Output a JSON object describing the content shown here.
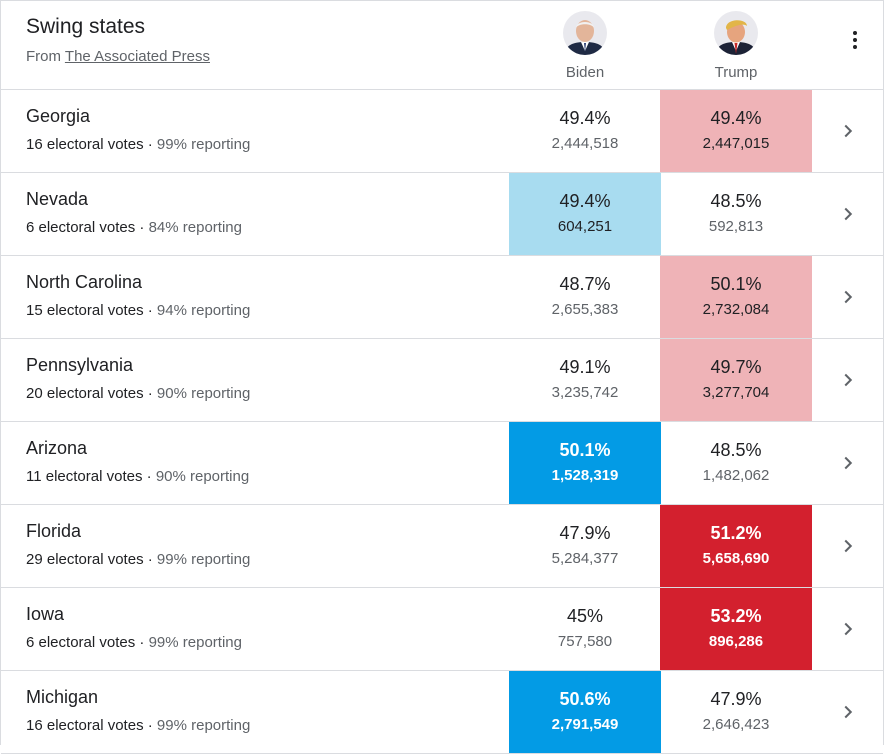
{
  "header": {
    "title": "Swing states",
    "source_prefix": "From",
    "source_link": "The Associated Press",
    "candidates": [
      {
        "name": "Biden",
        "icon": "biden-avatar-icon"
      },
      {
        "name": "Trump",
        "icon": "trump-avatar-icon"
      }
    ],
    "menu_icon": "more-vert-icon"
  },
  "colors": {
    "dem_strong": "#039be5",
    "dem_light": "#a8dcf0",
    "rep_strong": "#d3202e",
    "rep_light": "#efb3b7"
  },
  "rows": [
    {
      "state": "Georgia",
      "electoral": "16 electoral votes",
      "reporting": "99% reporting",
      "biden_pct": "49.4%",
      "biden_votes": "2,444,518",
      "trump_pct": "49.4%",
      "trump_votes": "2,447,015",
      "leader": "trump",
      "level": "light"
    },
    {
      "state": "Nevada",
      "electoral": "6 electoral votes",
      "reporting": "84% reporting",
      "biden_pct": "49.4%",
      "biden_votes": "604,251",
      "trump_pct": "48.5%",
      "trump_votes": "592,813",
      "leader": "biden",
      "level": "light"
    },
    {
      "state": "North Carolina",
      "electoral": "15 electoral votes",
      "reporting": "94% reporting",
      "biden_pct": "48.7%",
      "biden_votes": "2,655,383",
      "trump_pct": "50.1%",
      "trump_votes": "2,732,084",
      "leader": "trump",
      "level": "light"
    },
    {
      "state": "Pennsylvania",
      "electoral": "20 electoral votes",
      "reporting": "90% reporting",
      "biden_pct": "49.1%",
      "biden_votes": "3,235,742",
      "trump_pct": "49.7%",
      "trump_votes": "3,277,704",
      "leader": "trump",
      "level": "light"
    },
    {
      "state": "Arizona",
      "electoral": "11 electoral votes",
      "reporting": "90% reporting",
      "biden_pct": "50.1%",
      "biden_votes": "1,528,319",
      "trump_pct": "48.5%",
      "trump_votes": "1,482,062",
      "leader": "biden",
      "level": "strong"
    },
    {
      "state": "Florida",
      "electoral": "29 electoral votes",
      "reporting": "99% reporting",
      "biden_pct": "47.9%",
      "biden_votes": "5,284,377",
      "trump_pct": "51.2%",
      "trump_votes": "5,658,690",
      "leader": "trump",
      "level": "strong"
    },
    {
      "state": "Iowa",
      "electoral": "6 electoral votes",
      "reporting": "99% reporting",
      "biden_pct": "45%",
      "biden_votes": "757,580",
      "trump_pct": "53.2%",
      "trump_votes": "896,286",
      "leader": "trump",
      "level": "strong"
    },
    {
      "state": "Michigan",
      "electoral": "16 electoral votes",
      "reporting": "99% reporting",
      "biden_pct": "50.6%",
      "biden_votes": "2,791,549",
      "trump_pct": "47.9%",
      "trump_votes": "2,646,423",
      "leader": "biden",
      "level": "strong"
    }
  ]
}
